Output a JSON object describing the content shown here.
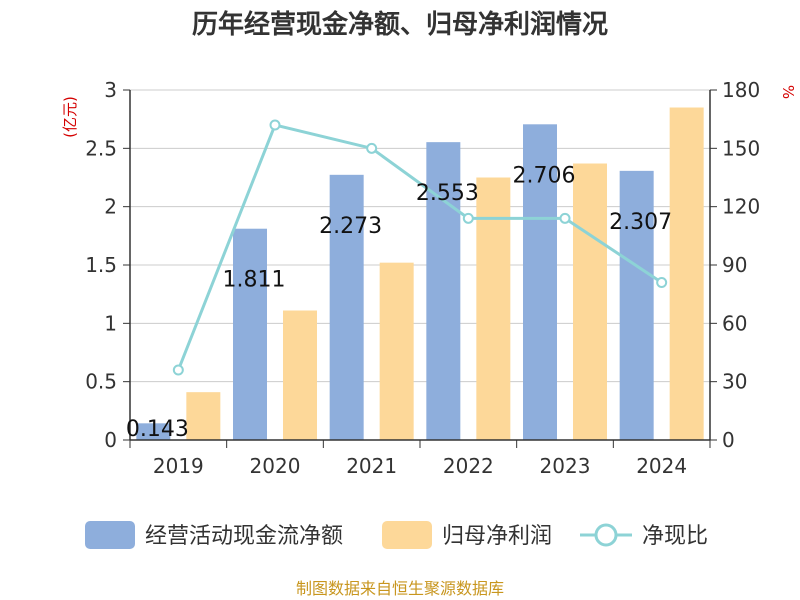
{
  "chart_data": {
    "type": "bar",
    "title": "历年经营现金净额、归母净利润情况",
    "categories": [
      "2019",
      "2020",
      "2021",
      "2022",
      "2023",
      "2024"
    ],
    "y_left": {
      "label": "(亿元)",
      "range": [
        0,
        3
      ],
      "ticks": [
        "0",
        "0.5",
        "1",
        "1.5",
        "2",
        "2.5",
        "3"
      ],
      "tick_values": [
        0,
        0.5,
        1,
        1.5,
        2,
        2.5,
        3
      ]
    },
    "y_right": {
      "label": "%",
      "range": [
        0,
        180
      ],
      "ticks": [
        "0",
        "30",
        "60",
        "90",
        "120",
        "150",
        "180"
      ],
      "tick_values": [
        0,
        30,
        60,
        90,
        120,
        150,
        180
      ]
    },
    "series": [
      {
        "name": "经营活动现金流净额",
        "type": "bar",
        "axis": "left",
        "color": "#8eaedc",
        "values": [
          0.143,
          1.811,
          2.273,
          2.553,
          2.706,
          2.307
        ],
        "labels": [
          "0.143",
          "1.811",
          "2.273",
          "2.553",
          "2.706",
          "2.307"
        ]
      },
      {
        "name": "归母净利润",
        "type": "bar",
        "axis": "left",
        "color": "#fdd899",
        "values": [
          0.41,
          1.11,
          1.52,
          2.25,
          2.37,
          2.85
        ]
      },
      {
        "name": "净现比",
        "type": "line",
        "axis": "right",
        "color": "#8dd3d6",
        "values": [
          36,
          162,
          150,
          114,
          114,
          81
        ]
      }
    ],
    "grid": true,
    "legend": "bottom",
    "source": "制图数据来自恒生聚源数据库"
  }
}
